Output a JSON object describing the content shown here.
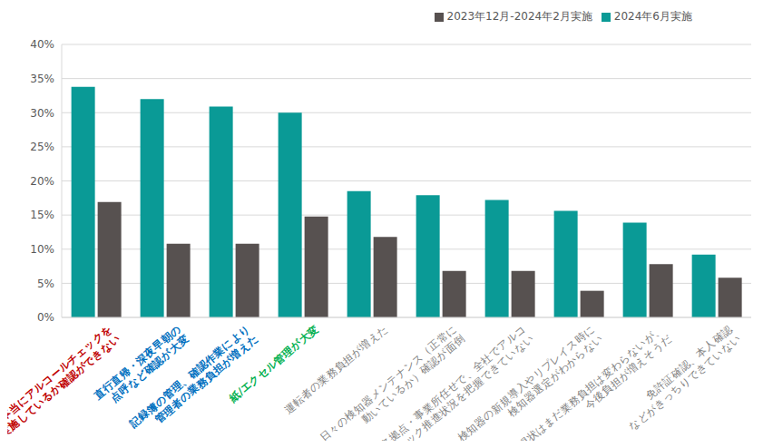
{
  "chart_data": {
    "type": "bar",
    "categories": [
      "本当にアルコールチェックを\n実施しているか確認ができない",
      "直行直帰・深夜早朝の\n点呼など確認が大変",
      "記録簿の管理、確認作業により\n管理者の業務負担が増えた",
      "紙/エクセル管理が大変",
      "運転者の業務負担が増えた",
      "日々の検知器メンテナンス（正常に\n動いているか）確認が面倒",
      "各拠点・事業所任せで、全社でアルコ\nルチェック推進状況を把握できていない",
      "検知器の新規導入やリプレイス時に\n検知器選定がわからない",
      "現状はまだ業務負担は変わらないが、\n今後負担が増えそうだ",
      "免許証確認、本人確認\nなどがきっちりできていない"
    ],
    "series": [
      {
        "name": "2024年6月実施",
        "color": "#0a9a96",
        "values": [
          33.8,
          32.0,
          30.9,
          30.0,
          18.5,
          17.9,
          17.2,
          15.6,
          13.9,
          9.2
        ]
      },
      {
        "name": "2023年12月-2024年2月実施",
        "color": "#575150",
        "values": [
          16.9,
          10.8,
          10.8,
          14.8,
          11.8,
          6.8,
          6.8,
          3.9,
          7.8,
          5.8
        ]
      }
    ],
    "ylim": [
      0,
      40
    ],
    "yticks": [
      {
        "value": 0,
        "label": "0%"
      },
      {
        "value": 5,
        "label": "5%"
      },
      {
        "value": 10,
        "label": "10%"
      },
      {
        "value": 15,
        "label": "15%"
      },
      {
        "value": 20,
        "label": "20%"
      },
      {
        "value": 25,
        "label": "25%"
      },
      {
        "value": 30,
        "label": "30%"
      },
      {
        "value": 35,
        "label": "35%"
      },
      {
        "value": 40,
        "label": "40%"
      }
    ],
    "grid": true,
    "legend": "top-right"
  }
}
